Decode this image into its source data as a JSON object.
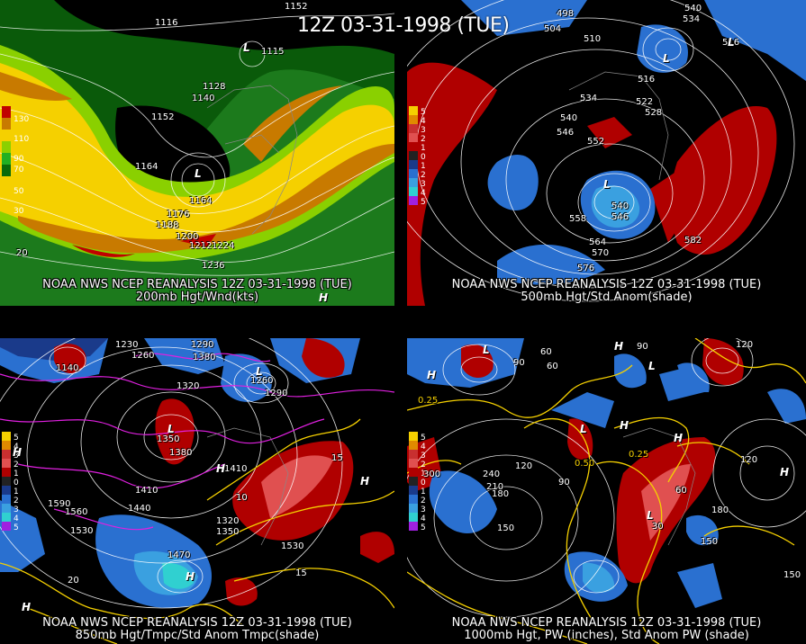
{
  "title": "12Z 03-31-1998 (TUE)",
  "panels": [
    {
      "id": "p1",
      "caption_line1": "NOAA NWS NCEP REANALYSIS 12Z 03-31-1998 (TUE)",
      "caption_line2": "200mb Hgt/Wnd(kts)",
      "legend_labels": [
        "130",
        "110",
        "90",
        "70",
        "50",
        "30"
      ],
      "legend_colors": [
        "#c00000",
        "#c87a00",
        "#f5d000",
        "#8ad000",
        "#22b022",
        "#0a6a0a"
      ],
      "contour_labels": [
        "1116",
        "1152",
        "1115",
        "1128",
        "1140",
        "1152",
        "1164",
        "1164",
        "1176",
        "1188",
        "1200",
        "1212",
        "1224",
        "1236",
        "20"
      ],
      "systems": [
        "L",
        "L",
        "H"
      ]
    },
    {
      "id": "p2",
      "caption_line1": "NOAA NWS NCEP REANALYSIS 12Z 03-31-1998 (TUE)",
      "caption_line2": "500mb Hgt/Std Anom(shade)",
      "legend_labels": [
        "5",
        "4",
        "3",
        "2",
        "1",
        "0",
        "1",
        "2",
        "3",
        "4",
        "5"
      ],
      "legend_colors": [
        "#f5d000",
        "#e08a00",
        "#c83030",
        "#e05050",
        "#b00000",
        "#222222",
        "#1a3a8a",
        "#2a70d0",
        "#3aa0e0",
        "#30d0d0",
        "#a020e0"
      ],
      "contour_labels": [
        "498",
        "504",
        "510",
        "540",
        "534",
        "516",
        "516",
        "522",
        "528",
        "534",
        "540",
        "546",
        "552",
        "540",
        "546",
        "558",
        "564",
        "570",
        "576",
        "582"
      ],
      "systems": [
        "L",
        "L",
        "L"
      ]
    },
    {
      "id": "p3",
      "caption_line1": "NOAA NWS NCEP REANALYSIS 12Z 03-31-1998 (TUE)",
      "caption_line2": "850mb Hgt/Tmpc/Std Anom Tmpc(shade)",
      "legend_labels": [
        "5",
        "4",
        "3",
        "2",
        "1",
        "0",
        "1",
        "2",
        "3",
        "4",
        "5"
      ],
      "legend_colors": [
        "#f5d000",
        "#e08a00",
        "#c83030",
        "#e05050",
        "#b00000",
        "#222222",
        "#1a3a8a",
        "#2a70d0",
        "#3aa0e0",
        "#30d0d0",
        "#a020e0"
      ],
      "contour_labels": [
        "1230",
        "1290",
        "1140",
        "1260",
        "1320",
        "1260",
        "1290",
        "1380",
        "1350",
        "1380",
        "1410",
        "1410",
        "1440",
        "1470",
        "1530",
        "1530",
        "1590",
        "1560",
        "1320",
        "1350",
        "10",
        "15",
        "15",
        "20"
      ],
      "systems": [
        "L",
        "L",
        "H",
        "H",
        "H",
        "H",
        "H"
      ]
    },
    {
      "id": "p4",
      "caption_line1": "NOAA NWS NCEP REANALYSIS 12Z 03-31-1998 (TUE)",
      "caption_line2": "1000mb Hgt, PW (inches), Std Anom PW (shade)",
      "legend_labels": [
        "5",
        "4",
        "3",
        "2",
        "1",
        "0",
        "1",
        "2",
        "3",
        "4",
        "5"
      ],
      "legend_colors": [
        "#f5d000",
        "#e08a00",
        "#c83030",
        "#e05050",
        "#b00000",
        "#222222",
        "#1a3a8a",
        "#2a70d0",
        "#3aa0e0",
        "#30d0d0",
        "#a020e0"
      ],
      "contour_labels": [
        "60",
        "90",
        "60",
        "120",
        "90",
        "0.25",
        "0.50",
        "0.25",
        "240",
        "210",
        "180",
        "150",
        "120",
        "90",
        "60",
        "30",
        "180",
        "150",
        "120",
        "150",
        "300"
      ],
      "systems": [
        "L",
        "H",
        "L",
        "H",
        "H",
        "L",
        "H",
        "L",
        "H"
      ]
    }
  ]
}
